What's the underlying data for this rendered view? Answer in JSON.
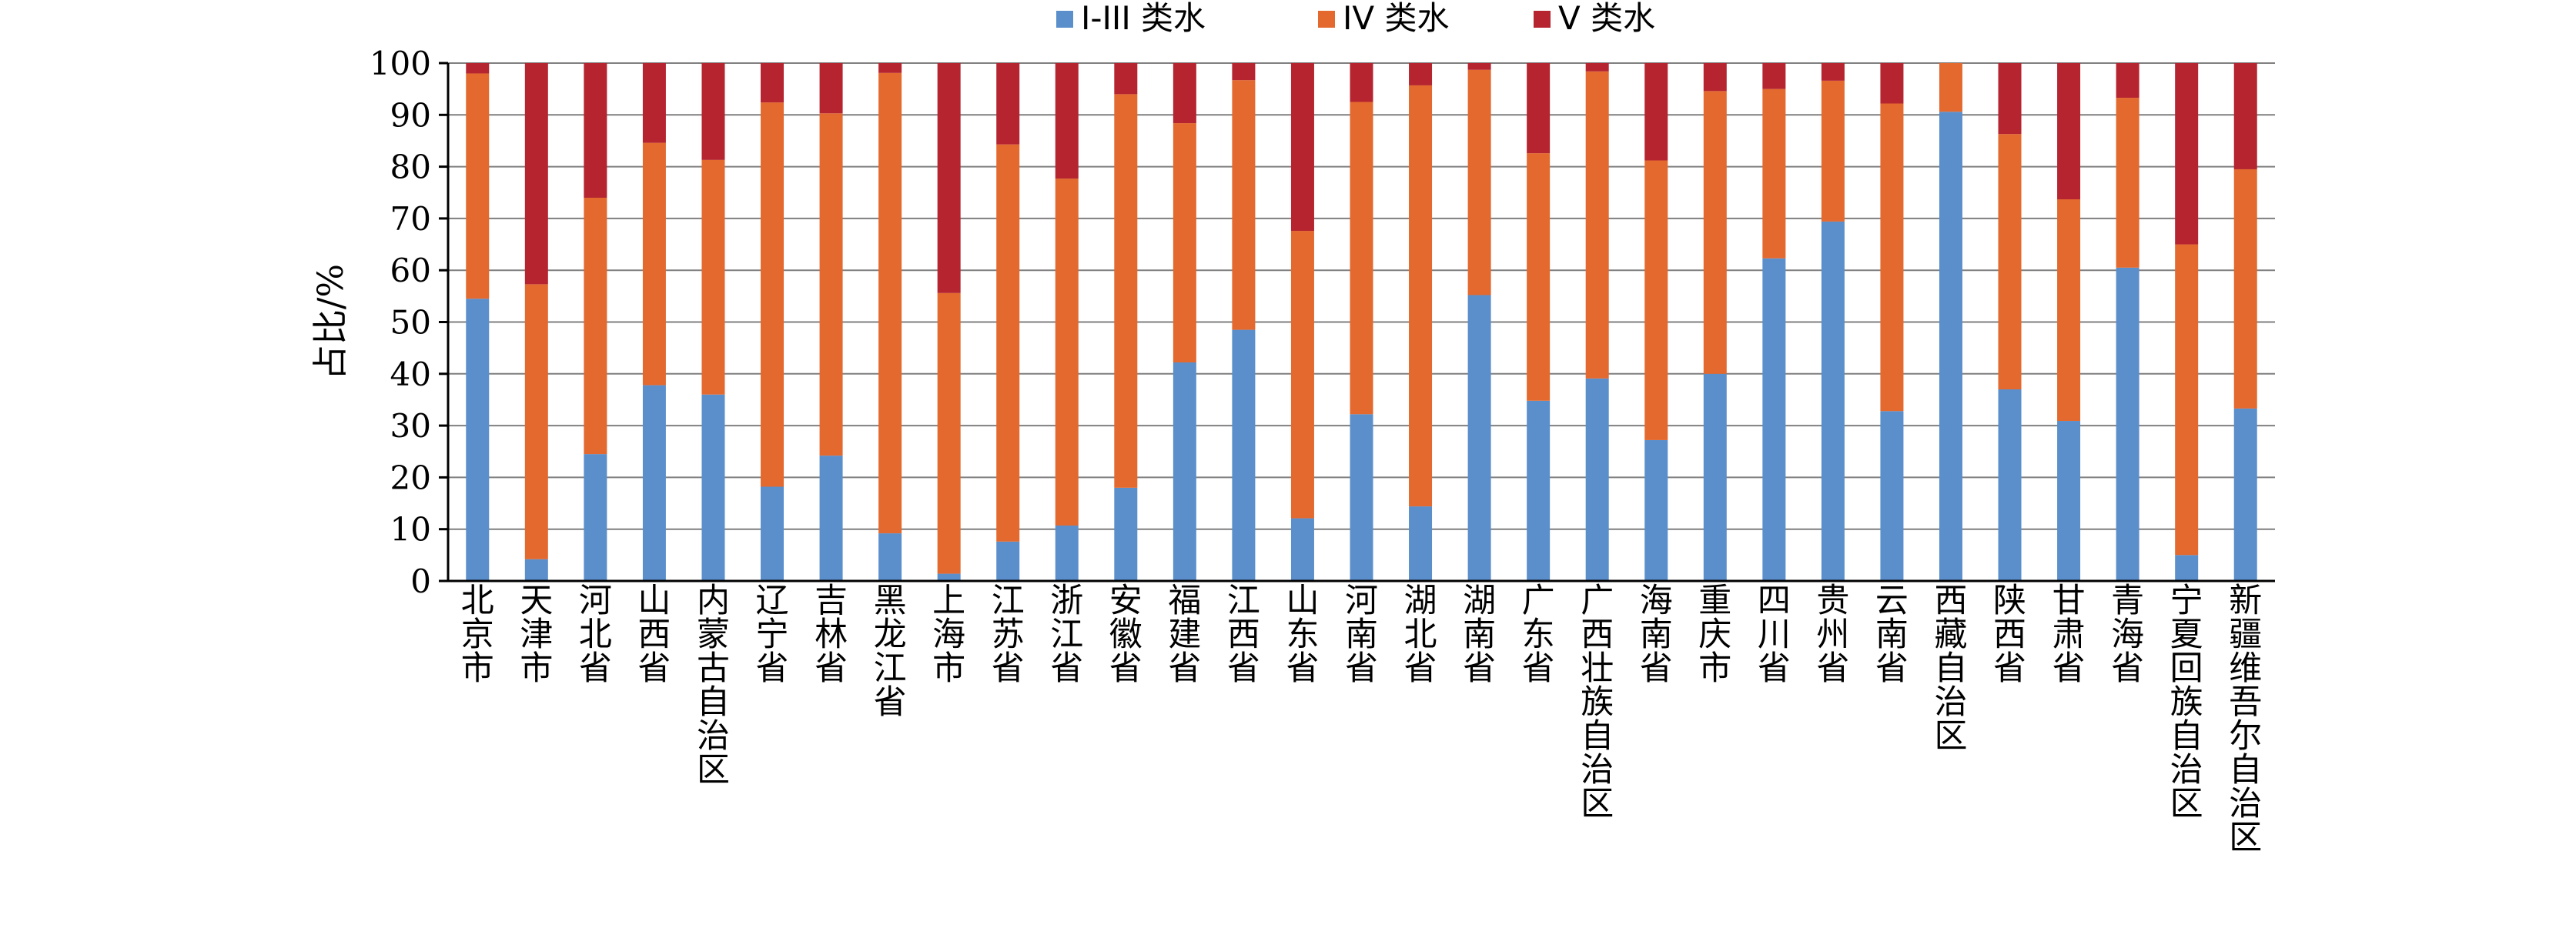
{
  "chart_data": {
    "type": "bar",
    "stacked": true,
    "ylabel": "占比/%",
    "ylim": [
      0,
      100
    ],
    "yticks": [
      0,
      10,
      20,
      30,
      40,
      50,
      60,
      70,
      80,
      90,
      100
    ],
    "grid": true,
    "legend_position": "top-center",
    "categories": [
      "北京市",
      "天津市",
      "河北省",
      "山西省",
      "内蒙古自治区",
      "辽宁省",
      "吉林省",
      "黑龙江省",
      "上海市",
      "江苏省",
      "浙江省",
      "安徽省",
      "福建省",
      "江西省",
      "山东省",
      "河南省",
      "湖北省",
      "湖南省",
      "广东省",
      "广西壮族自治区",
      "海南省",
      "重庆市",
      "四川省",
      "贵州省",
      "云南省",
      "西藏自治区",
      "陕西省",
      "甘肃省",
      "青海省",
      "宁夏回族自治区",
      "新疆维吾尔自治区"
    ],
    "series": [
      {
        "name": "I-III 类水",
        "color": "#5b8fcc",
        "values": [
          54.5,
          4.2,
          24.5,
          37.8,
          36.0,
          18.2,
          24.2,
          9.2,
          1.4,
          7.6,
          10.7,
          18.0,
          42.2,
          48.5,
          12.1,
          32.2,
          14.4,
          55.2,
          34.8,
          39.1,
          27.2,
          40.0,
          62.3,
          69.4,
          32.8,
          90.6,
          37.0,
          30.9,
          60.5,
          5.0,
          33.3
        ]
      },
      {
        "name": "IV 类水",
        "color": "#e3692f",
        "values": [
          43.5,
          53.1,
          49.5,
          46.8,
          45.3,
          74.2,
          66.1,
          88.9,
          54.2,
          76.7,
          67.0,
          76.0,
          46.2,
          48.2,
          55.5,
          60.3,
          81.3,
          43.5,
          47.8,
          59.3,
          54.0,
          54.6,
          32.7,
          27.2,
          59.4,
          9.4,
          49.3,
          42.8,
          32.8,
          60.0,
          46.2
        ]
      },
      {
        "name": "V 类水",
        "color": "#b5242f",
        "values": [
          2.0,
          42.7,
          26.0,
          15.4,
          18.7,
          7.6,
          9.7,
          1.9,
          44.4,
          15.7,
          22.3,
          6.0,
          11.6,
          3.3,
          32.4,
          7.5,
          4.3,
          1.3,
          17.4,
          1.6,
          18.8,
          5.4,
          5.0,
          3.4,
          7.8,
          0.0,
          13.7,
          26.3,
          6.7,
          35.0,
          20.5
        ]
      }
    ]
  }
}
